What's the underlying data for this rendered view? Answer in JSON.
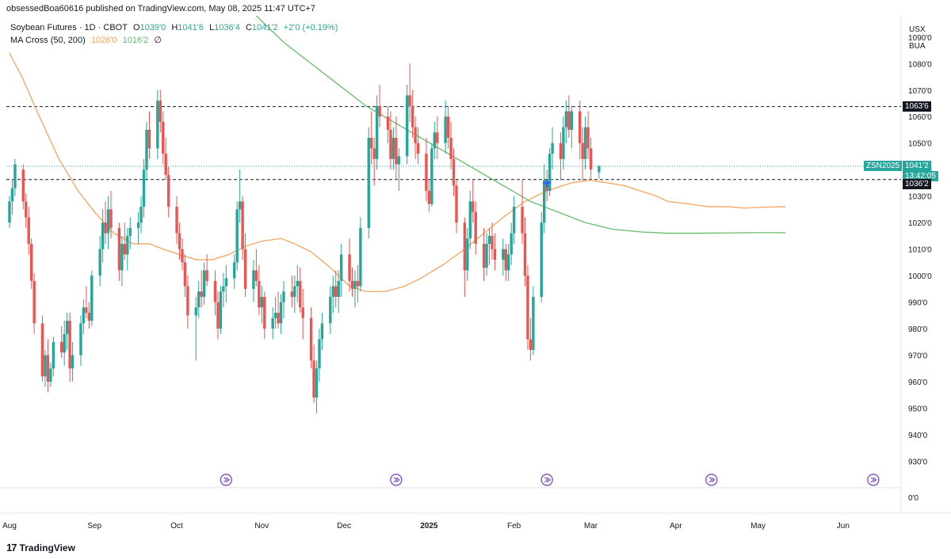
{
  "header": {
    "publisher_line": "obsessedBoa60616 published on TradingView.com, May 08, 2025 11:47 UTC+7"
  },
  "legend": {
    "symbol_line": "Soybean Futures · 1D · CBOT",
    "open_label": "O",
    "open_value": "1039'0",
    "high_label": "H",
    "high_value": "1041'6",
    "low_label": "L",
    "low_value": "1036'4",
    "close_label": "C",
    "close_value": "1041'2",
    "change": "+2'0 (+0.19%)",
    "ma_title": "MA Cross (50, 200)",
    "ma_fast_value": "1026'0",
    "ma_slow_value": "1016'2",
    "ma_extra": "∅"
  },
  "price_axis": {
    "unit_top": "USX",
    "unit_bottom": "BUA"
  },
  "tags": {
    "resistance": "1063'6",
    "symbol": "ZSN2025",
    "last_price": "1041'2",
    "countdown": "13:42:05",
    "support": "1036'2"
  },
  "brand": {
    "name": "TradingView",
    "logo": "17"
  },
  "colors": {
    "up": "#26a69a",
    "down": "#ef5350",
    "ma_fast": "#f7a35c",
    "ma_slow": "#66bb6a",
    "last_line": "#26a69a",
    "level_line": "#131722",
    "event_icon": "#7e57c2",
    "cross_marker": "#2962ff"
  },
  "chart_data": {
    "type": "candlestick",
    "instrument": "Soybean Futures",
    "timeframe": "1D",
    "y_tick_labels": [
      "1090'0",
      "1080'0",
      "1070'0",
      "1060'0",
      "1050'0",
      "1040'0",
      "1030'0",
      "1020'0",
      "1010'0",
      "1000'0",
      "990'0",
      "980'0",
      "970'0",
      "960'0",
      "950'0",
      "940'0",
      "930'0",
      "0'0"
    ],
    "y_ticks": [
      1090,
      1080,
      1070,
      1060,
      1050,
      1040,
      1030,
      1020,
      1010,
      1000,
      990,
      980,
      970,
      960,
      950,
      940,
      930
    ],
    "ylim": [
      920,
      1098
    ],
    "x_tick_labels": [
      "Aug",
      "Sep",
      "Oct",
      "Nov",
      "Dec",
      "2025",
      "Feb",
      "Mar",
      "Apr",
      "May",
      "Jun"
    ],
    "x_ticks_day": [
      0,
      31,
      61,
      92,
      122,
      153,
      184,
      212,
      243,
      273,
      304
    ],
    "levels": {
      "resistance": 1063.75,
      "support": 1036.25,
      "last": 1041.25
    },
    "candles_start": "2024-07-31",
    "candles": [
      [
        1020,
        1030,
        1018,
        1028
      ],
      [
        1028,
        1036,
        1023,
        1033
      ],
      [
        1033,
        1044,
        1030,
        1042
      ],
      [
        1040,
        1042,
        1025,
        1028
      ],
      [
        1028,
        1031,
        1018,
        1022
      ],
      [
        1022,
        1026,
        1008,
        1012
      ],
      [
        1012,
        1014,
        995,
        998
      ],
      [
        998,
        1001,
        978,
        982
      ],
      [
        982,
        985,
        960,
        962
      ],
      [
        962,
        972,
        958,
        970
      ],
      [
        970,
        976,
        956,
        960
      ],
      [
        960,
        967,
        958,
        965
      ],
      [
        965,
        977,
        962,
        975
      ],
      [
        975,
        981,
        969,
        971
      ],
      [
        971,
        983,
        966,
        978
      ],
      [
        978,
        986,
        972,
        983
      ],
      [
        983,
        986,
        960,
        965
      ],
      [
        965,
        975,
        960,
        970
      ],
      [
        970,
        985,
        966,
        982
      ],
      [
        982,
        991,
        978,
        988
      ],
      [
        988,
        996,
        984,
        986
      ],
      [
        986,
        990,
        980,
        983
      ],
      [
        983,
        1002,
        981,
        1000
      ],
      [
        1000,
        1015,
        996,
        1010
      ],
      [
        1010,
        1025,
        1005,
        1020
      ],
      [
        1020,
        1028,
        1012,
        1016
      ],
      [
        1016,
        1030,
        1010,
        1025
      ],
      [
        1025,
        1032,
        1014,
        1018
      ],
      [
        1018,
        1020,
        998,
        1002
      ],
      [
        1002,
        1015,
        996,
        1012
      ],
      [
        1012,
        1020,
        1006,
        1008
      ],
      [
        1008,
        1018,
        1002,
        1015
      ],
      [
        1015,
        1022,
        1010,
        1018
      ],
      [
        1018,
        1024,
        1012,
        1020
      ],
      [
        1020,
        1030,
        1016,
        1026
      ],
      [
        1026,
        1044,
        1022,
        1040
      ],
      [
        1040,
        1058,
        1036,
        1055
      ],
      [
        1055,
        1062,
        1044,
        1048
      ],
      [
        1048,
        1070,
        1044,
        1066
      ],
      [
        1066,
        1070,
        1054,
        1058
      ],
      [
        1058,
        1062,
        1042,
        1046
      ],
      [
        1046,
        1052,
        1036,
        1038
      ],
      [
        1038,
        1041,
        1022,
        1026
      ],
      [
        1026,
        1030,
        1012,
        1016
      ],
      [
        1016,
        1020,
        1006,
        1010
      ],
      [
        1010,
        1014,
        1002,
        1005
      ],
      [
        1005,
        1008,
        992,
        996
      ],
      [
        996,
        1000,
        980,
        985
      ],
      [
        985,
        992,
        968,
        988
      ],
      [
        988,
        998,
        984,
        994
      ],
      [
        994,
        1002,
        988,
        992
      ],
      [
        992,
        1005,
        989,
        1002
      ],
      [
        1002,
        1008,
        996,
        998
      ],
      [
        998,
        1002,
        985,
        990
      ],
      [
        990,
        994,
        976,
        980
      ],
      [
        980,
        996,
        978,
        994
      ],
      [
        994,
        1001,
        988,
        996
      ],
      [
        996,
        1004,
        990,
        999
      ],
      [
        999,
        1008,
        995,
        1005
      ],
      [
        1005,
        1028,
        1002,
        1025
      ],
      [
        1025,
        1040,
        1020,
        1028
      ],
      [
        1028,
        1030,
        1006,
        1010
      ],
      [
        1010,
        1016,
        992,
        995
      ],
      [
        995,
        1006,
        990,
        1002
      ],
      [
        1002,
        1010,
        996,
        998
      ],
      [
        998,
        1004,
        985,
        988
      ],
      [
        988,
        996,
        982,
        992
      ],
      [
        992,
        994,
        976,
        980
      ],
      [
        980,
        988,
        976,
        984
      ],
      [
        984,
        992,
        980,
        986
      ],
      [
        986,
        994,
        980,
        982
      ],
      [
        982,
        993,
        978,
        990
      ],
      [
        990,
        998,
        984,
        994
      ],
      [
        994,
        1000,
        988,
        992
      ],
      [
        992,
        1000,
        986,
        996
      ],
      [
        996,
        1004,
        990,
        998
      ],
      [
        998,
        1003,
        986,
        988
      ],
      [
        988,
        995,
        976,
        984
      ],
      [
        984,
        988,
        965,
        968
      ],
      [
        968,
        974,
        952,
        954
      ],
      [
        954,
        968,
        948,
        965
      ],
      [
        965,
        980,
        960,
        976
      ],
      [
        976,
        986,
        972,
        982
      ],
      [
        982,
        996,
        978,
        992
      ],
      [
        992,
        1000,
        986,
        996
      ],
      [
        996,
        1002,
        988,
        992
      ],
      [
        992,
        1002,
        986,
        998
      ],
      [
        998,
        1012,
        992,
        1008
      ],
      [
        1008,
        1014,
        994,
        998
      ],
      [
        998,
        1003,
        992,
        995
      ],
      [
        995,
        1002,
        988,
        998
      ],
      [
        998,
        1004,
        990,
        996
      ],
      [
        996,
        1022,
        994,
        1018
      ],
      [
        1018,
        1056,
        1014,
        1052
      ],
      [
        1052,
        1062,
        1042,
        1048
      ],
      [
        1048,
        1052,
        1034,
        1044
      ],
      [
        1044,
        1068,
        1040,
        1064
      ],
      [
        1064,
        1072,
        1056,
        1060
      ],
      [
        1060,
        1064,
        1050,
        1055
      ],
      [
        1055,
        1062,
        1040,
        1044
      ],
      [
        1044,
        1056,
        1040,
        1052
      ],
      [
        1052,
        1060,
        1036,
        1042
      ],
      [
        1042,
        1048,
        1032,
        1045
      ],
      [
        1045,
        1072,
        1042,
        1068
      ],
      [
        1068,
        1080,
        1058,
        1064
      ],
      [
        1064,
        1070,
        1052,
        1056
      ],
      [
        1056,
        1060,
        1044,
        1050
      ],
      [
        1050,
        1056,
        1042,
        1046
      ],
      [
        1046,
        1052,
        1028,
        1032
      ],
      [
        1032,
        1036,
        1024,
        1027
      ],
      [
        1027,
        1050,
        1026,
        1048
      ],
      [
        1048,
        1058,
        1044,
        1054
      ],
      [
        1054,
        1060,
        1044,
        1050
      ],
      [
        1050,
        1066,
        1046,
        1060
      ],
      [
        1060,
        1064,
        1048,
        1052
      ],
      [
        1052,
        1058,
        1040,
        1044
      ],
      [
        1044,
        1048,
        1030,
        1034
      ],
      [
        1034,
        1036,
        1016,
        1020
      ],
      [
        1020,
        1022,
        992,
        1002
      ],
      [
        1002,
        1018,
        998,
        1014
      ],
      [
        1014,
        1032,
        1010,
        1028
      ],
      [
        1028,
        1036,
        1020,
        1024
      ],
      [
        1024,
        1028,
        1008,
        1012
      ],
      [
        1012,
        1018,
        998,
        1003
      ],
      [
        1003,
        1016,
        1000,
        1012
      ],
      [
        1012,
        1018,
        1004,
        1015
      ],
      [
        1015,
        1020,
        1006,
        1010
      ],
      [
        1010,
        1016,
        1002,
        1006
      ],
      [
        1006,
        1014,
        1000,
        1010
      ],
      [
        1010,
        1012,
        998,
        1002
      ],
      [
        1002,
        1012,
        998,
        1008
      ],
      [
        1008,
        1020,
        1004,
        1016
      ],
      [
        1016,
        1030,
        1012,
        1026
      ],
      [
        1026,
        1036,
        1012,
        1016
      ],
      [
        1016,
        1022,
        996,
        1000
      ],
      [
        1000,
        1004,
        972,
        976
      ],
      [
        976,
        984,
        968,
        972
      ],
      [
        972,
        996,
        970,
        992
      ],
      [
        992,
        1024,
        990,
        1020
      ],
      [
        1020,
        1042,
        1016,
        1036
      ],
      [
        1036,
        1040,
        1028,
        1032
      ],
      [
        1032,
        1048,
        1030,
        1046
      ],
      [
        1046,
        1056,
        1040,
        1050
      ],
      [
        1050,
        1054,
        1036,
        1044
      ],
      [
        1044,
        1060,
        1040,
        1056
      ],
      [
        1056,
        1066,
        1050,
        1062
      ],
      [
        1062,
        1068,
        1052,
        1055
      ],
      [
        1055,
        1064,
        1048,
        1062
      ],
      [
        1062,
        1066,
        1044,
        1050
      ],
      [
        1050,
        1056,
        1036,
        1044
      ],
      [
        1044,
        1060,
        1040,
        1056
      ],
      [
        1056,
        1062,
        1044,
        1048
      ],
      [
        1048,
        1052,
        1036,
        1040
      ],
      [
        1039,
        1041.75,
        1036.5,
        1041.25
      ]
    ],
    "ma_fast_series": [
      [
        0,
        1084
      ],
      [
        5,
        1074
      ],
      [
        10,
        1062
      ],
      [
        18,
        1044
      ],
      [
        25,
        1032
      ],
      [
        31,
        1024
      ],
      [
        38,
        1016
      ],
      [
        45,
        1012
      ],
      [
        51,
        1012
      ],
      [
        56,
        1010
      ],
      [
        62,
        1008
      ],
      [
        68,
        1006
      ],
      [
        74,
        1006
      ],
      [
        80,
        1008
      ],
      [
        86,
        1011
      ],
      [
        92,
        1013
      ],
      [
        99,
        1014
      ],
      [
        104,
        1012
      ],
      [
        110,
        1009
      ],
      [
        117,
        1003
      ],
      [
        124,
        996
      ],
      [
        130,
        994
      ],
      [
        137,
        994
      ],
      [
        144,
        996
      ],
      [
        150,
        999
      ],
      [
        158,
        1004
      ],
      [
        166,
        1010
      ],
      [
        173,
        1016
      ],
      [
        180,
        1022
      ],
      [
        188,
        1028
      ],
      [
        196,
        1032
      ],
      [
        205,
        1035
      ],
      [
        212,
        1036
      ],
      [
        218,
        1035
      ],
      [
        224,
        1034
      ],
      [
        230,
        1032
      ],
      [
        236,
        1030
      ],
      [
        240,
        1028
      ],
      [
        248,
        1027
      ],
      [
        255,
        1026
      ],
      [
        262,
        1026
      ],
      [
        268,
        1025.5
      ],
      [
        275,
        1025.8
      ],
      [
        283,
        1026
      ]
    ],
    "ma_slow_series": [
      [
        90,
        1098
      ],
      [
        100,
        1088
      ],
      [
        110,
        1080
      ],
      [
        120,
        1072
      ],
      [
        130,
        1064
      ],
      [
        140,
        1058
      ],
      [
        150,
        1052
      ],
      [
        160,
        1046
      ],
      [
        170,
        1040
      ],
      [
        180,
        1034
      ],
      [
        190,
        1028
      ],
      [
        200,
        1024
      ],
      [
        210,
        1020
      ],
      [
        220,
        1017.5
      ],
      [
        230,
        1016.5
      ],
      [
        240,
        1016
      ],
      [
        250,
        1016
      ],
      [
        260,
        1016.1
      ],
      [
        270,
        1016.2
      ],
      [
        283,
        1016.2
      ]
    ],
    "ma_cross_marker": {
      "day": 196,
      "price": 1035
    },
    "event_markers_day": [
      79,
      141,
      196,
      256,
      315
    ]
  }
}
